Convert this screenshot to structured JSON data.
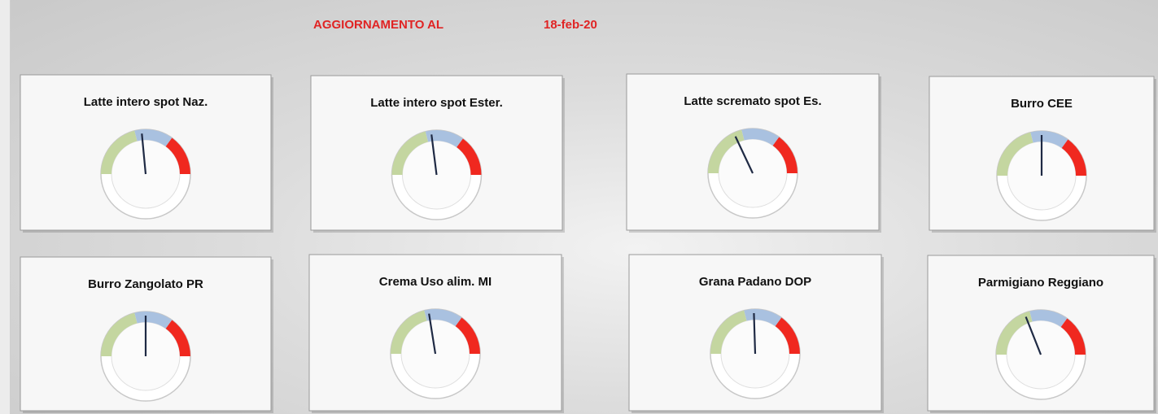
{
  "header": {
    "label": "AGGIORNAMENTO AL",
    "date": "18-feb-20"
  },
  "gauge": {
    "min": 0,
    "max": 100,
    "needle_color": "#1f2a44",
    "bands": [
      {
        "from": 0,
        "to": 42,
        "color": "#c4d6a0"
      },
      {
        "from": 42,
        "to": 70,
        "color": "#a9c1e0"
      },
      {
        "from": 70,
        "to": 100,
        "color": "#f0281f"
      }
    ]
  },
  "panels": [
    {
      "title": "Latte intero spot Naz.",
      "value": 47
    },
    {
      "title": "Latte intero spot Ester.",
      "value": 46
    },
    {
      "title": "Latte scremato spot Es.",
      "value": 36
    },
    {
      "title": "Burro CEE",
      "value": 50
    },
    {
      "title": "Burro Zangolato PR",
      "value": 50
    },
    {
      "title": "Crema Uso alim. MI",
      "value": 45
    },
    {
      "title": "Grana Padano DOP",
      "value": 49
    },
    {
      "title": "Parmigiano Reggiano",
      "value": 38
    }
  ]
}
